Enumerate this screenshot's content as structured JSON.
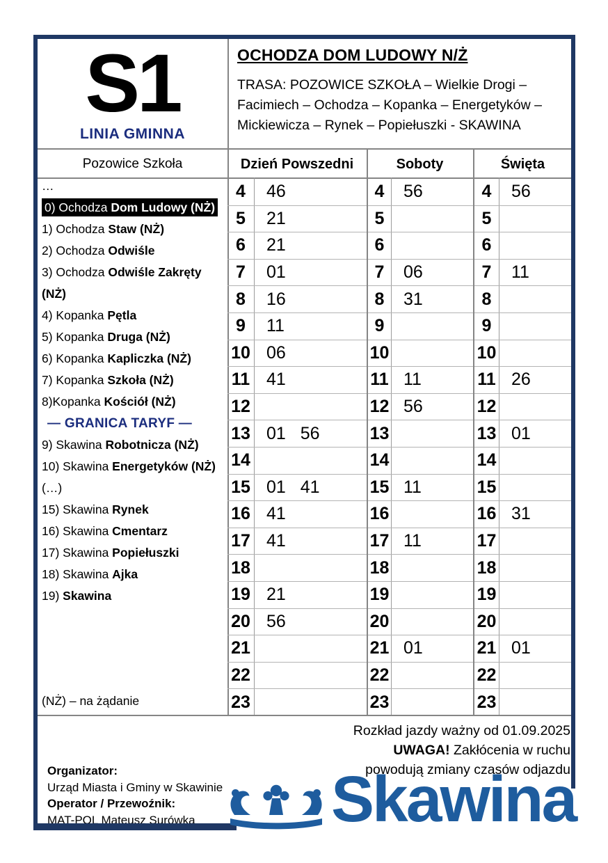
{
  "header": {
    "line_number": "S1",
    "line_type": "LINIA GMINNA",
    "direction_title": "OCHODZA DOM LUDOWY N/Ż",
    "route": "TRASA: POZOWICE SZKOŁA – Wielkie Drogi – Facimiech – Ochodza – Kopanka – Energetyków – Mickiewicza – Rynek – Popiełuszki - SKAWINA"
  },
  "stops": {
    "column_header": "Pozowice Szkoła",
    "items": [
      {
        "type": "plain",
        "text": "…"
      },
      {
        "type": "stop",
        "prefix": "0) Ochodza ",
        "name": "Dom Ludowy (NŻ)",
        "highlighted": true
      },
      {
        "type": "stop",
        "prefix": "1) Ochodza ",
        "name": "Staw (NŻ)"
      },
      {
        "type": "stop",
        "prefix": "2) Ochodza ",
        "name": "Odwiśle"
      },
      {
        "type": "stop",
        "prefix": "3) Ochodza ",
        "name": "Odwiśle Zakręty (NŻ)"
      },
      {
        "type": "stop",
        "prefix": "4) Kopanka ",
        "name": "Pętla"
      },
      {
        "type": "stop",
        "prefix": "5) Kopanka ",
        "name": "Druga (NŻ)"
      },
      {
        "type": "stop",
        "prefix": "6) Kopanka ",
        "name": "Kapliczka (NŻ)"
      },
      {
        "type": "stop",
        "prefix": "7) Kopanka ",
        "name": "Szkoła (NŻ)"
      },
      {
        "type": "stop",
        "prefix": "8)Kopanka ",
        "name": "Kościół (NŻ)"
      },
      {
        "type": "divider",
        "text": "— GRANICA TARYF —"
      },
      {
        "type": "stop",
        "prefix": "9) Skawina ",
        "name": "Robotnicza (NŻ)"
      },
      {
        "type": "stop",
        "prefix": "10) Skawina ",
        "name": "Energetyków (NŻ)"
      },
      {
        "type": "plain",
        "text": "(…)"
      },
      {
        "type": "stop",
        "prefix": "15) Skawina ",
        "name": "Rynek"
      },
      {
        "type": "stop",
        "prefix": "16) Skawina ",
        "name": "Cmentarz"
      },
      {
        "type": "stop",
        "prefix": "17) Skawina ",
        "name": "Popiełuszki"
      },
      {
        "type": "stop",
        "prefix": "18) Skawina ",
        "name": "Ajka"
      },
      {
        "type": "stop",
        "prefix": "19) ",
        "name": "Skawina"
      }
    ],
    "footnote": "(NŻ) – na żądanie"
  },
  "timetable": {
    "day_headers": {
      "weekday": "Dzień Powszedni",
      "saturday": "Soboty",
      "holiday": "Święta"
    },
    "rows": [
      {
        "hour": "4",
        "weekday": "46",
        "saturday": "56",
        "holiday": "56"
      },
      {
        "hour": "5",
        "weekday": "21",
        "saturday": "",
        "holiday": ""
      },
      {
        "hour": "6",
        "weekday": "21",
        "saturday": "",
        "holiday": ""
      },
      {
        "hour": "7",
        "weekday": "01",
        "saturday": "06",
        "holiday": "11"
      },
      {
        "hour": "8",
        "weekday": "16",
        "saturday": "31",
        "holiday": ""
      },
      {
        "hour": "9",
        "weekday": "11",
        "saturday": "",
        "holiday": ""
      },
      {
        "hour": "10",
        "weekday": "06",
        "saturday": "",
        "holiday": ""
      },
      {
        "hour": "11",
        "weekday": "41",
        "saturday": "11",
        "holiday": "26"
      },
      {
        "hour": "12",
        "weekday": "",
        "saturday": "56",
        "holiday": ""
      },
      {
        "hour": "13",
        "weekday": "01 56",
        "saturday": "",
        "holiday": "01"
      },
      {
        "hour": "14",
        "weekday": "",
        "saturday": "",
        "holiday": ""
      },
      {
        "hour": "15",
        "weekday": "01 41",
        "saturday": "11",
        "holiday": ""
      },
      {
        "hour": "16",
        "weekday": "41",
        "saturday": "",
        "holiday": "31"
      },
      {
        "hour": "17",
        "weekday": "41",
        "saturday": "11",
        "holiday": ""
      },
      {
        "hour": "18",
        "weekday": "",
        "saturday": "",
        "holiday": ""
      },
      {
        "hour": "19",
        "weekday": "21",
        "saturday": "",
        "holiday": ""
      },
      {
        "hour": "20",
        "weekday": "56",
        "saturday": "",
        "holiday": ""
      },
      {
        "hour": "21",
        "weekday": "",
        "saturday": "01",
        "holiday": "01"
      },
      {
        "hour": "22",
        "weekday": "",
        "saturday": "",
        "holiday": ""
      },
      {
        "hour": "23",
        "weekday": "",
        "saturday": "",
        "holiday": ""
      }
    ]
  },
  "footer": {
    "validity": "Rozkład jazdy ważny od 01.09.2025",
    "warning_emphasis": "UWAGA!",
    "warning_line1_rest": " Zakłócenia w ruchu",
    "warning_line2": "powodują zmiany czasów odjazdu",
    "organizer_label": "Organizator:",
    "organizer_name": "Urząd Miasta i Gminy w Skawinie",
    "operator_label": "Operator / Przewoźnik:",
    "operator_name": "MAT-POL Mateusz Surówka",
    "logo_text": "Skawina",
    "logo_icon": "crown-icon"
  },
  "colors": {
    "frame_navy": "#1f3864",
    "accent_navy": "#1b2d7e",
    "logo_blue": "#1e5c9e",
    "section_line_gray": "#858585",
    "row_line_gray": "#b3b3b3",
    "highlight_bg": "#000000",
    "highlight_fg": "#ffffff"
  }
}
